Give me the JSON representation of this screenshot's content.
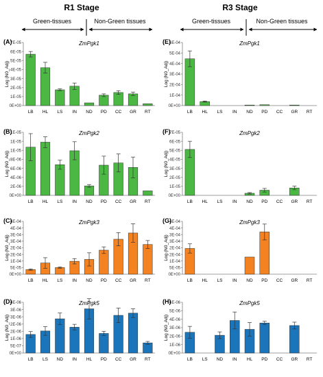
{
  "header": {
    "left_stage": "R1 Stage",
    "right_stage": "R3 Stage",
    "left_green": "Green-tissues",
    "left_nongreen": "Non-Green tissues",
    "right_green": "Green-tissues",
    "right_nongreen": "Non-Green tissues"
  },
  "colors": {
    "green": "#4cb844",
    "orange": "#f58220",
    "blue": "#1b75bb",
    "error_bar": "#333333"
  },
  "chart_data": [
    {
      "id": "A",
      "panel_label": "(A)",
      "title": "ZmPgk1",
      "type": "bar",
      "color": "green",
      "ylabel": "Log (N0_Adj)",
      "yticks": [
        "0E+00",
        "1E-05",
        "2E-05",
        "3E-05",
        "4E-05",
        "5E-05",
        "6E-05",
        "7E-05"
      ],
      "ylim": [
        0,
        7e-05
      ],
      "categories": [
        "LB",
        "HL",
        "LS",
        "IN",
        "ND",
        "PD",
        "CC",
        "GR",
        "RT"
      ],
      "values": [
        5.7e-05,
        4.2e-05,
        1.75e-05,
        2.15e-05,
        3e-06,
        1.15e-05,
        1.45e-05,
        1.3e-05,
        2e-06
      ],
      "errors": [
        3e-06,
        6e-06,
        1e-06,
        3.5e-06,
        0,
        1.5e-06,
        2e-06,
        2e-06,
        0
      ]
    },
    {
      "id": "E",
      "panel_label": "(E)",
      "title": "ZmPgk1",
      "type": "bar",
      "color": "green",
      "ylabel": "Log (N0_Adj)",
      "yticks": [
        "0E+00",
        "1E-04",
        "2E-04",
        "3E-04",
        "4E-04",
        "5E-04",
        "6E-04"
      ],
      "ylim": [
        0,
        0.0006
      ],
      "categories": [
        "LB",
        "HL",
        "LS",
        "IN",
        "ND",
        "PD",
        "CC",
        "GR",
        "RT"
      ],
      "values": [
        0.000445,
        3.8e-05,
        0,
        0,
        5e-06,
        8e-06,
        0,
        4e-06,
        0
      ],
      "errors": [
        7.5e-05,
        5e-06,
        0,
        0,
        0,
        0,
        0,
        0,
        0
      ]
    },
    {
      "id": "B",
      "panel_label": "(B)",
      "title": "ZmPgk2",
      "type": "bar",
      "color": "green",
      "ylabel": "Log (N0_Adj)",
      "yticks": [
        "0E+00",
        "2E-06",
        "4E-06",
        "6E-06",
        "8E-06",
        "1E-05",
        "1E-05",
        "1E-05"
      ],
      "ylim": [
        0,
        1.4e-05
      ],
      "categories": [
        "LB",
        "HL",
        "LS",
        "IN",
        "ND",
        "PD",
        "CC",
        "GR",
        "RT"
      ],
      "values": [
        1.07e-05,
        1.18e-05,
        6.8e-06,
        9.9e-06,
        2.1e-06,
        6.7e-06,
        7.2e-06,
        6.2e-06,
        1e-06
      ],
      "errors": [
        3e-06,
        1.2e-06,
        1e-06,
        2e-06,
        3e-07,
        2e-06,
        2e-06,
        2.3e-06,
        0
      ]
    },
    {
      "id": "F",
      "panel_label": "(F)",
      "title": "ZmPgk2",
      "type": "bar",
      "color": "green",
      "ylabel": "Log (N0_Adj)",
      "yticks": [
        "0E+00",
        "1E-05",
        "2E-05",
        "3E-05",
        "4E-05",
        "5E-05",
        "6E-05",
        "7E-05"
      ],
      "ylim": [
        0,
        7e-05
      ],
      "categories": [
        "LB",
        "HL",
        "LS",
        "IN",
        "ND",
        "PD",
        "CC",
        "GR",
        "RT"
      ],
      "values": [
        5.1e-05,
        0,
        0,
        0,
        2.3e-06,
        5.7e-06,
        0,
        8.2e-06,
        0
      ],
      "errors": [
        9e-06,
        0,
        0,
        0,
        8e-07,
        2e-06,
        0,
        2e-06,
        0
      ]
    },
    {
      "id": "C",
      "panel_label": "(C)",
      "title": "ZmPgk3",
      "type": "bar",
      "color": "orange",
      "ylabel": "Log (N0_Adj)",
      "yticks": [
        "0E+00",
        "5E-05",
        "1E-04",
        "2E-04",
        "2E-04",
        "3E-04",
        "3E-04",
        "4E-04",
        "4E-04"
      ],
      "ylim": [
        0,
        0.0004
      ],
      "categories": [
        "LB",
        "HL",
        "LS",
        "IN",
        "ND",
        "PD",
        "CC",
        "GR",
        "RT"
      ],
      "values": [
        3.5e-05,
        8.5e-05,
        5e-05,
        9.8e-05,
        0.000112,
        0.000182,
        0.000265,
        0.000312,
        0.000225
      ],
      "errors": [
        5e-06,
        4e-05,
        5e-06,
        2e-05,
        5e-05,
        2.5e-05,
        5e-05,
        7e-05,
        3e-05
      ]
    },
    {
      "id": "G",
      "panel_label": "(G)",
      "title": "ZmPgk3",
      "type": "bar",
      "color": "orange",
      "ylabel": "Log (N0_Adj)",
      "yticks": [
        "0E+00",
        "5E-05",
        "1E-04",
        "2E-04",
        "2E-04",
        "3E-04",
        "3E-04",
        "4E-04",
        "4E-04"
      ],
      "ylim": [
        0,
        0.0004
      ],
      "categories": [
        "LB",
        "HL",
        "LS",
        "IN",
        "ND",
        "PD",
        "CC",
        "GR",
        "RT"
      ],
      "values": [
        0.000195,
        0,
        0,
        0,
        0.00013,
        0.00032,
        0,
        0,
        0
      ],
      "errors": [
        3.5e-05,
        0,
        0,
        0,
        0,
        6e-05,
        0,
        0,
        0
      ]
    },
    {
      "id": "D",
      "panel_label": "(D)",
      "title": "ZmPgk5",
      "type": "bar",
      "color": "blue",
      "ylabel": "Log (N0_Adj)",
      "yticks": [
        "0E+00",
        "5E-07",
        "1E-06",
        "2E-06",
        "2E-06",
        "3E-06",
        "3E-06",
        "4E-06"
      ],
      "ylim": [
        0,
        3.5e-06
      ],
      "categories": [
        "LB",
        "LS",
        "ND",
        "IN",
        "HL",
        "PD",
        "CC",
        "GR",
        "RT"
      ],
      "values": [
        1.28e-06,
        1.52e-06,
        2.36e-06,
        1.78e-06,
        3.05e-06,
        1.35e-06,
        2.6e-06,
        2.75e-06,
        7e-07
      ],
      "errors": [
        2e-07,
        3e-07,
        4e-07,
        2e-07,
        7e-07,
        1.5e-07,
        5e-07,
        3e-07,
        1e-07
      ]
    },
    {
      "id": "H",
      "panel_label": "(H)",
      "title": "ZmPgk5",
      "type": "bar",
      "color": "blue",
      "ylabel": "Log (N0_Adj)",
      "yticks": [
        "0E+00",
        "1E-06",
        "2E-06",
        "3E-06",
        "4E-06",
        "5E-06",
        "6E-06"
      ],
      "ylim": [
        0,
        6e-06
      ],
      "categories": [
        "LB",
        "LS",
        "ND",
        "IN",
        "HL",
        "PD",
        "CC",
        "GR",
        "RT"
      ],
      "values": [
        2.45e-06,
        0,
        2.1e-06,
        3.85e-06,
        2.8e-06,
        3.55e-06,
        0,
        3.25e-06,
        0
      ],
      "errors": [
        7e-07,
        0,
        4e-07,
        1e-06,
        8e-07,
        2e-07,
        0,
        4e-07,
        0
      ]
    }
  ]
}
